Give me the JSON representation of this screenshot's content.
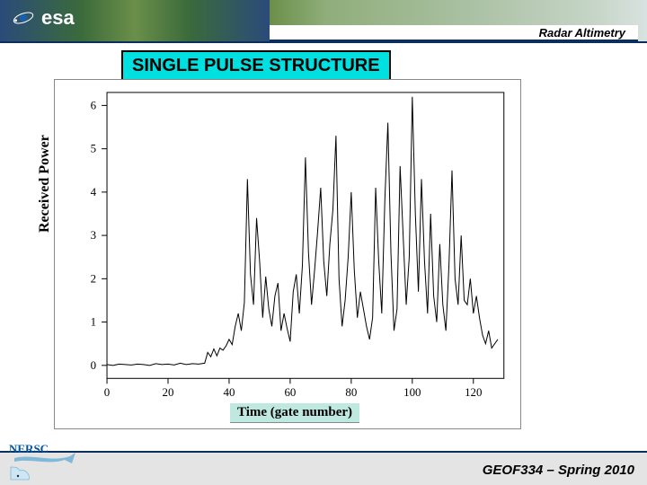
{
  "header": {
    "logo_text": "esa",
    "subtitle": "Radar Altimetry"
  },
  "title": "SINGLE PULSE STRUCTURE",
  "chart": {
    "type": "line",
    "xlabel": "Time (gate number)",
    "ylabel": "Received Power",
    "xlim": [
      0,
      130
    ],
    "ylim": [
      -0.3,
      6.3
    ],
    "xticks": [
      0,
      20,
      40,
      60,
      80,
      100,
      120
    ],
    "yticks": [
      0,
      1,
      2,
      3,
      4,
      5,
      6
    ],
    "line_color": "#000000",
    "line_width": 1,
    "axis_color": "#000000",
    "background": "#ffffff",
    "data": [
      [
        0,
        0.02
      ],
      [
        2,
        0.0
      ],
      [
        4,
        0.03
      ],
      [
        6,
        0.02
      ],
      [
        8,
        0.01
      ],
      [
        10,
        0.03
      ],
      [
        12,
        0.02
      ],
      [
        14,
        0.0
      ],
      [
        16,
        0.04
      ],
      [
        18,
        0.02
      ],
      [
        20,
        0.03
      ],
      [
        22,
        0.01
      ],
      [
        24,
        0.05
      ],
      [
        26,
        0.02
      ],
      [
        28,
        0.04
      ],
      [
        30,
        0.03
      ],
      [
        32,
        0.05
      ],
      [
        33,
        0.3
      ],
      [
        34,
        0.2
      ],
      [
        35,
        0.38
      ],
      [
        36,
        0.22
      ],
      [
        37,
        0.4
      ],
      [
        38,
        0.35
      ],
      [
        39,
        0.45
      ],
      [
        40,
        0.6
      ],
      [
        41,
        0.48
      ],
      [
        42,
        0.9
      ],
      [
        43,
        1.2
      ],
      [
        44,
        0.8
      ],
      [
        45,
        1.45
      ],
      [
        46,
        4.3
      ],
      [
        47,
        2.1
      ],
      [
        48,
        1.4
      ],
      [
        49,
        3.4
      ],
      [
        50,
        2.4
      ],
      [
        51,
        1.1
      ],
      [
        52,
        2.05
      ],
      [
        53,
        1.3
      ],
      [
        54,
        0.9
      ],
      [
        55,
        1.6
      ],
      [
        56,
        1.9
      ],
      [
        57,
        0.8
      ],
      [
        58,
        1.2
      ],
      [
        59,
        0.85
      ],
      [
        60,
        0.55
      ],
      [
        61,
        1.7
      ],
      [
        62,
        2.1
      ],
      [
        63,
        1.2
      ],
      [
        64,
        2.3
      ],
      [
        65,
        4.8
      ],
      [
        66,
        2.6
      ],
      [
        67,
        1.4
      ],
      [
        68,
        2.2
      ],
      [
        69,
        3.1
      ],
      [
        70,
        4.1
      ],
      [
        71,
        2.4
      ],
      [
        72,
        1.6
      ],
      [
        73,
        2.8
      ],
      [
        74,
        3.6
      ],
      [
        75,
        5.3
      ],
      [
        76,
        2.0
      ],
      [
        77,
        0.9
      ],
      [
        78,
        1.5
      ],
      [
        79,
        2.5
      ],
      [
        80,
        4.0
      ],
      [
        81,
        2.2
      ],
      [
        82,
        1.1
      ],
      [
        83,
        1.7
      ],
      [
        84,
        1.3
      ],
      [
        85,
        0.9
      ],
      [
        86,
        0.6
      ],
      [
        87,
        1.1
      ],
      [
        88,
        4.1
      ],
      [
        89,
        2.4
      ],
      [
        90,
        1.2
      ],
      [
        91,
        3.8
      ],
      [
        92,
        5.6
      ],
      [
        93,
        2.6
      ],
      [
        94,
        0.8
      ],
      [
        95,
        1.3
      ],
      [
        96,
        4.6
      ],
      [
        97,
        3.0
      ],
      [
        98,
        1.4
      ],
      [
        99,
        2.5
      ],
      [
        100,
        6.2
      ],
      [
        101,
        3.5
      ],
      [
        102,
        1.7
      ],
      [
        103,
        4.3
      ],
      [
        104,
        2.4
      ],
      [
        105,
        1.2
      ],
      [
        106,
        3.5
      ],
      [
        107,
        1.6
      ],
      [
        108,
        1.0
      ],
      [
        109,
        2.8
      ],
      [
        110,
        1.4
      ],
      [
        111,
        0.8
      ],
      [
        112,
        2.3
      ],
      [
        113,
        4.5
      ],
      [
        114,
        2.0
      ],
      [
        115,
        1.4
      ],
      [
        116,
        3.0
      ],
      [
        117,
        1.5
      ],
      [
        118,
        1.4
      ],
      [
        119,
        2.0
      ],
      [
        120,
        1.2
      ],
      [
        121,
        1.6
      ],
      [
        122,
        1.1
      ],
      [
        123,
        0.7
      ],
      [
        124,
        0.5
      ],
      [
        125,
        0.8
      ],
      [
        126,
        0.4
      ],
      [
        128,
        0.6
      ]
    ]
  },
  "footer": {
    "course": "GEOF334 – Spring 2010",
    "nersc_label": "NERSC"
  },
  "colors": {
    "header_dark": "#0a2f5c",
    "title_bg": "#00e0e0",
    "footer_bg": "#e4e4e4",
    "xlabel_bg": "#bfe8e0"
  }
}
